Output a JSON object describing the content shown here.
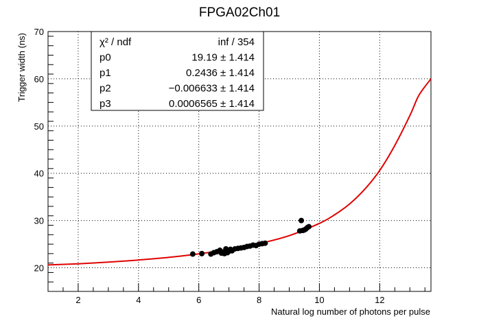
{
  "chart_data": {
    "type": "scatter",
    "title": "FPGA02Ch01",
    "xlabel": "Natural log number of photons per pulse",
    "ylabel": "Trigger width (ns)",
    "xlim": [
      1.0,
      13.7
    ],
    "ylim": [
      15,
      70
    ],
    "grid": true,
    "x_ticks": [
      2,
      4,
      6,
      8,
      10,
      12
    ],
    "y_ticks": [
      20,
      30,
      40,
      50,
      60,
      70
    ],
    "colors": {
      "points": "#000000",
      "fit": "#e00000"
    },
    "fit": {
      "type": "polynomial",
      "coefficients": [
        19.19,
        0.2436,
        -0.006633,
        0.0006565
      ],
      "scale_note": "curve drawn to match visible fit line",
      "curve_points": [
        [
          1.0,
          20.6
        ],
        [
          2.0,
          20.85
        ],
        [
          3.0,
          21.2
        ],
        [
          4.0,
          21.65
        ],
        [
          5.0,
          22.2
        ],
        [
          6.0,
          22.95
        ],
        [
          7.0,
          23.85
        ],
        [
          8.0,
          25.1
        ],
        [
          9.0,
          26.8
        ],
        [
          10.0,
          29.4
        ],
        [
          10.5,
          31.2
        ],
        [
          11.0,
          33.5
        ],
        [
          11.5,
          36.6
        ],
        [
          12.0,
          40.6
        ],
        [
          12.5,
          45.9
        ],
        [
          13.0,
          52.2
        ],
        [
          13.3,
          56.5
        ],
        [
          13.7,
          60.0
        ]
      ]
    },
    "points": [
      [
        5.8,
        22.9
      ],
      [
        6.1,
        23.0
      ],
      [
        6.4,
        22.9
      ],
      [
        6.5,
        23.2
      ],
      [
        6.6,
        23.4
      ],
      [
        6.7,
        23.7
      ],
      [
        6.75,
        23.1
      ],
      [
        6.8,
        23.3
      ],
      [
        6.85,
        23.0
      ],
      [
        6.9,
        24.0
      ],
      [
        6.95,
        23.2
      ],
      [
        7.0,
        23.5
      ],
      [
        7.05,
        23.9
      ],
      [
        7.1,
        23.6
      ],
      [
        7.2,
        24.0
      ],
      [
        7.3,
        24.1
      ],
      [
        7.4,
        24.2
      ],
      [
        7.5,
        24.3
      ],
      [
        7.6,
        24.5
      ],
      [
        7.7,
        24.6
      ],
      [
        7.8,
        24.8
      ],
      [
        7.9,
        24.7
      ],
      [
        8.0,
        25.0
      ],
      [
        8.1,
        25.1
      ],
      [
        8.2,
        25.2
      ],
      [
        9.35,
        27.8
      ],
      [
        9.4,
        30.0
      ],
      [
        9.45,
        27.9
      ],
      [
        9.5,
        28.0
      ],
      [
        9.55,
        28.2
      ],
      [
        9.6,
        28.5
      ],
      [
        9.65,
        28.7
      ]
    ],
    "stats": {
      "rows": [
        {
          "label": "χ² / ndf",
          "value": "inf / 354"
        },
        {
          "label": "p0",
          "value": "19.19 ± 1.414"
        },
        {
          "label": "p1",
          "value": "0.2436 ± 1.414"
        },
        {
          "label": "p2",
          "value": "−0.006633 ± 1.414"
        },
        {
          "label": "p3",
          "value": "0.0006565 ± 1.414"
        }
      ]
    }
  }
}
